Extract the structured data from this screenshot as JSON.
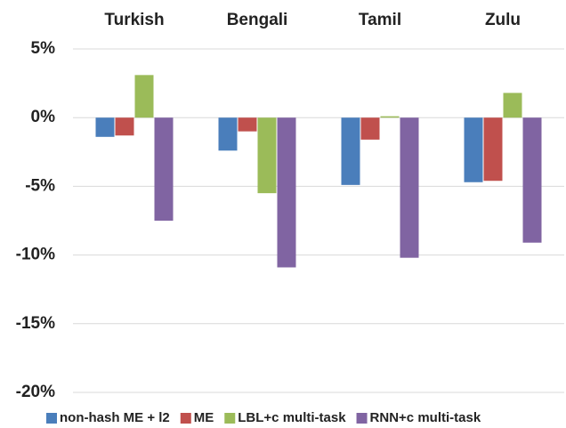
{
  "chart_data": {
    "type": "bar",
    "categories": [
      "Turkish",
      "Bengali",
      "Tamil",
      "Zulu"
    ],
    "series": [
      {
        "name": "non-hash ME + l2",
        "color": "#4a7ebb",
        "values": [
          -1.4,
          -2.4,
          -4.9,
          -4.7
        ]
      },
      {
        "name": "ME",
        "color": "#c0504d",
        "values": [
          -1.3,
          -1.0,
          -1.6,
          -4.6
        ]
      },
      {
        "name": "LBL+c multi-task",
        "color": "#9bbb59",
        "values": [
          3.1,
          -5.5,
          0.1,
          1.8
        ]
      },
      {
        "name": "RNN+c multi-task",
        "color": "#8064a2",
        "values": [
          -7.5,
          -10.9,
          -10.2,
          -9.1
        ]
      }
    ],
    "ylim": [
      -20,
      5
    ],
    "yticks": [
      {
        "value": -20,
        "label": "-20%"
      },
      {
        "value": -15,
        "label": "-15%"
      },
      {
        "value": -10,
        "label": "-10%"
      },
      {
        "value": -5,
        "label": "-5%"
      },
      {
        "value": 0,
        "label": "0%"
      },
      {
        "value": 5,
        "label": "5%"
      }
    ],
    "grid": true,
    "legend": "bottom"
  }
}
